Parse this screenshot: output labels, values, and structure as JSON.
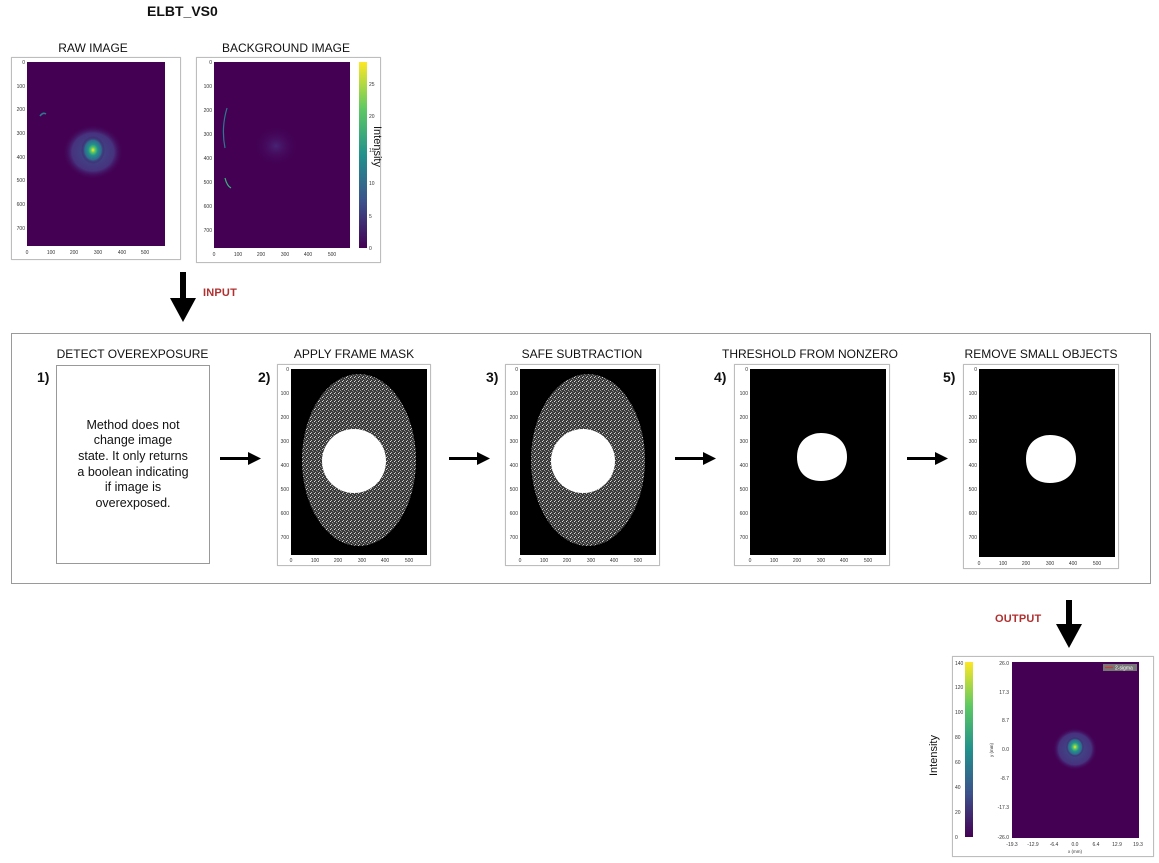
{
  "title": "ELBT_VS0",
  "inputs": {
    "raw_caption": "RAW IMAGE",
    "background_caption": "BACKGROUND IMAGE",
    "colorbar_label": "Intensity",
    "colorbar_ticks": [
      "25",
      "20",
      "15",
      "10",
      "5",
      "0"
    ],
    "y_ticks": [
      "0",
      "100",
      "200",
      "300",
      "400",
      "500",
      "600",
      "700"
    ],
    "x_ticks": [
      "0",
      "100",
      "200",
      "300",
      "400",
      "500"
    ]
  },
  "arrow_labels": {
    "input": "INPUT",
    "output": "OUTPUT"
  },
  "steps": [
    {
      "number": "1)",
      "caption": "DETECT OVEREXPOSURE",
      "note": "Method does not change image state. It only returns a boolean indicating if image is overexposed."
    },
    {
      "number": "2)",
      "caption": "APPLY FRAME MASK"
    },
    {
      "number": "3)",
      "caption": "SAFE SUBTRACTION"
    },
    {
      "number": "4)",
      "caption": "THRESHOLD FROM NONZERO"
    },
    {
      "number": "5)",
      "caption": "REMOVE SMALL OBJECTS"
    }
  ],
  "output": {
    "colorbar_label": "Intensity",
    "colorbar_ticks": [
      "140",
      "120",
      "100",
      "80",
      "60",
      "40",
      "20",
      "0"
    ],
    "y_ticks": [
      "26.0",
      "17.3",
      "8.7",
      "0.0",
      "-8.7",
      "-17.3",
      "-26.0"
    ],
    "x_ticks": [
      "-19.3",
      "-12.9",
      "-6.4",
      "0.0",
      "6.4",
      "12.9",
      "19.3"
    ],
    "xlabel": "x (mm)",
    "ylabel": "y (mm)",
    "legend": "2-sigma"
  },
  "colors": {
    "viridis_dark": "#440154",
    "accent_red": "#b03030",
    "frame_border": "#9a9a9a"
  }
}
